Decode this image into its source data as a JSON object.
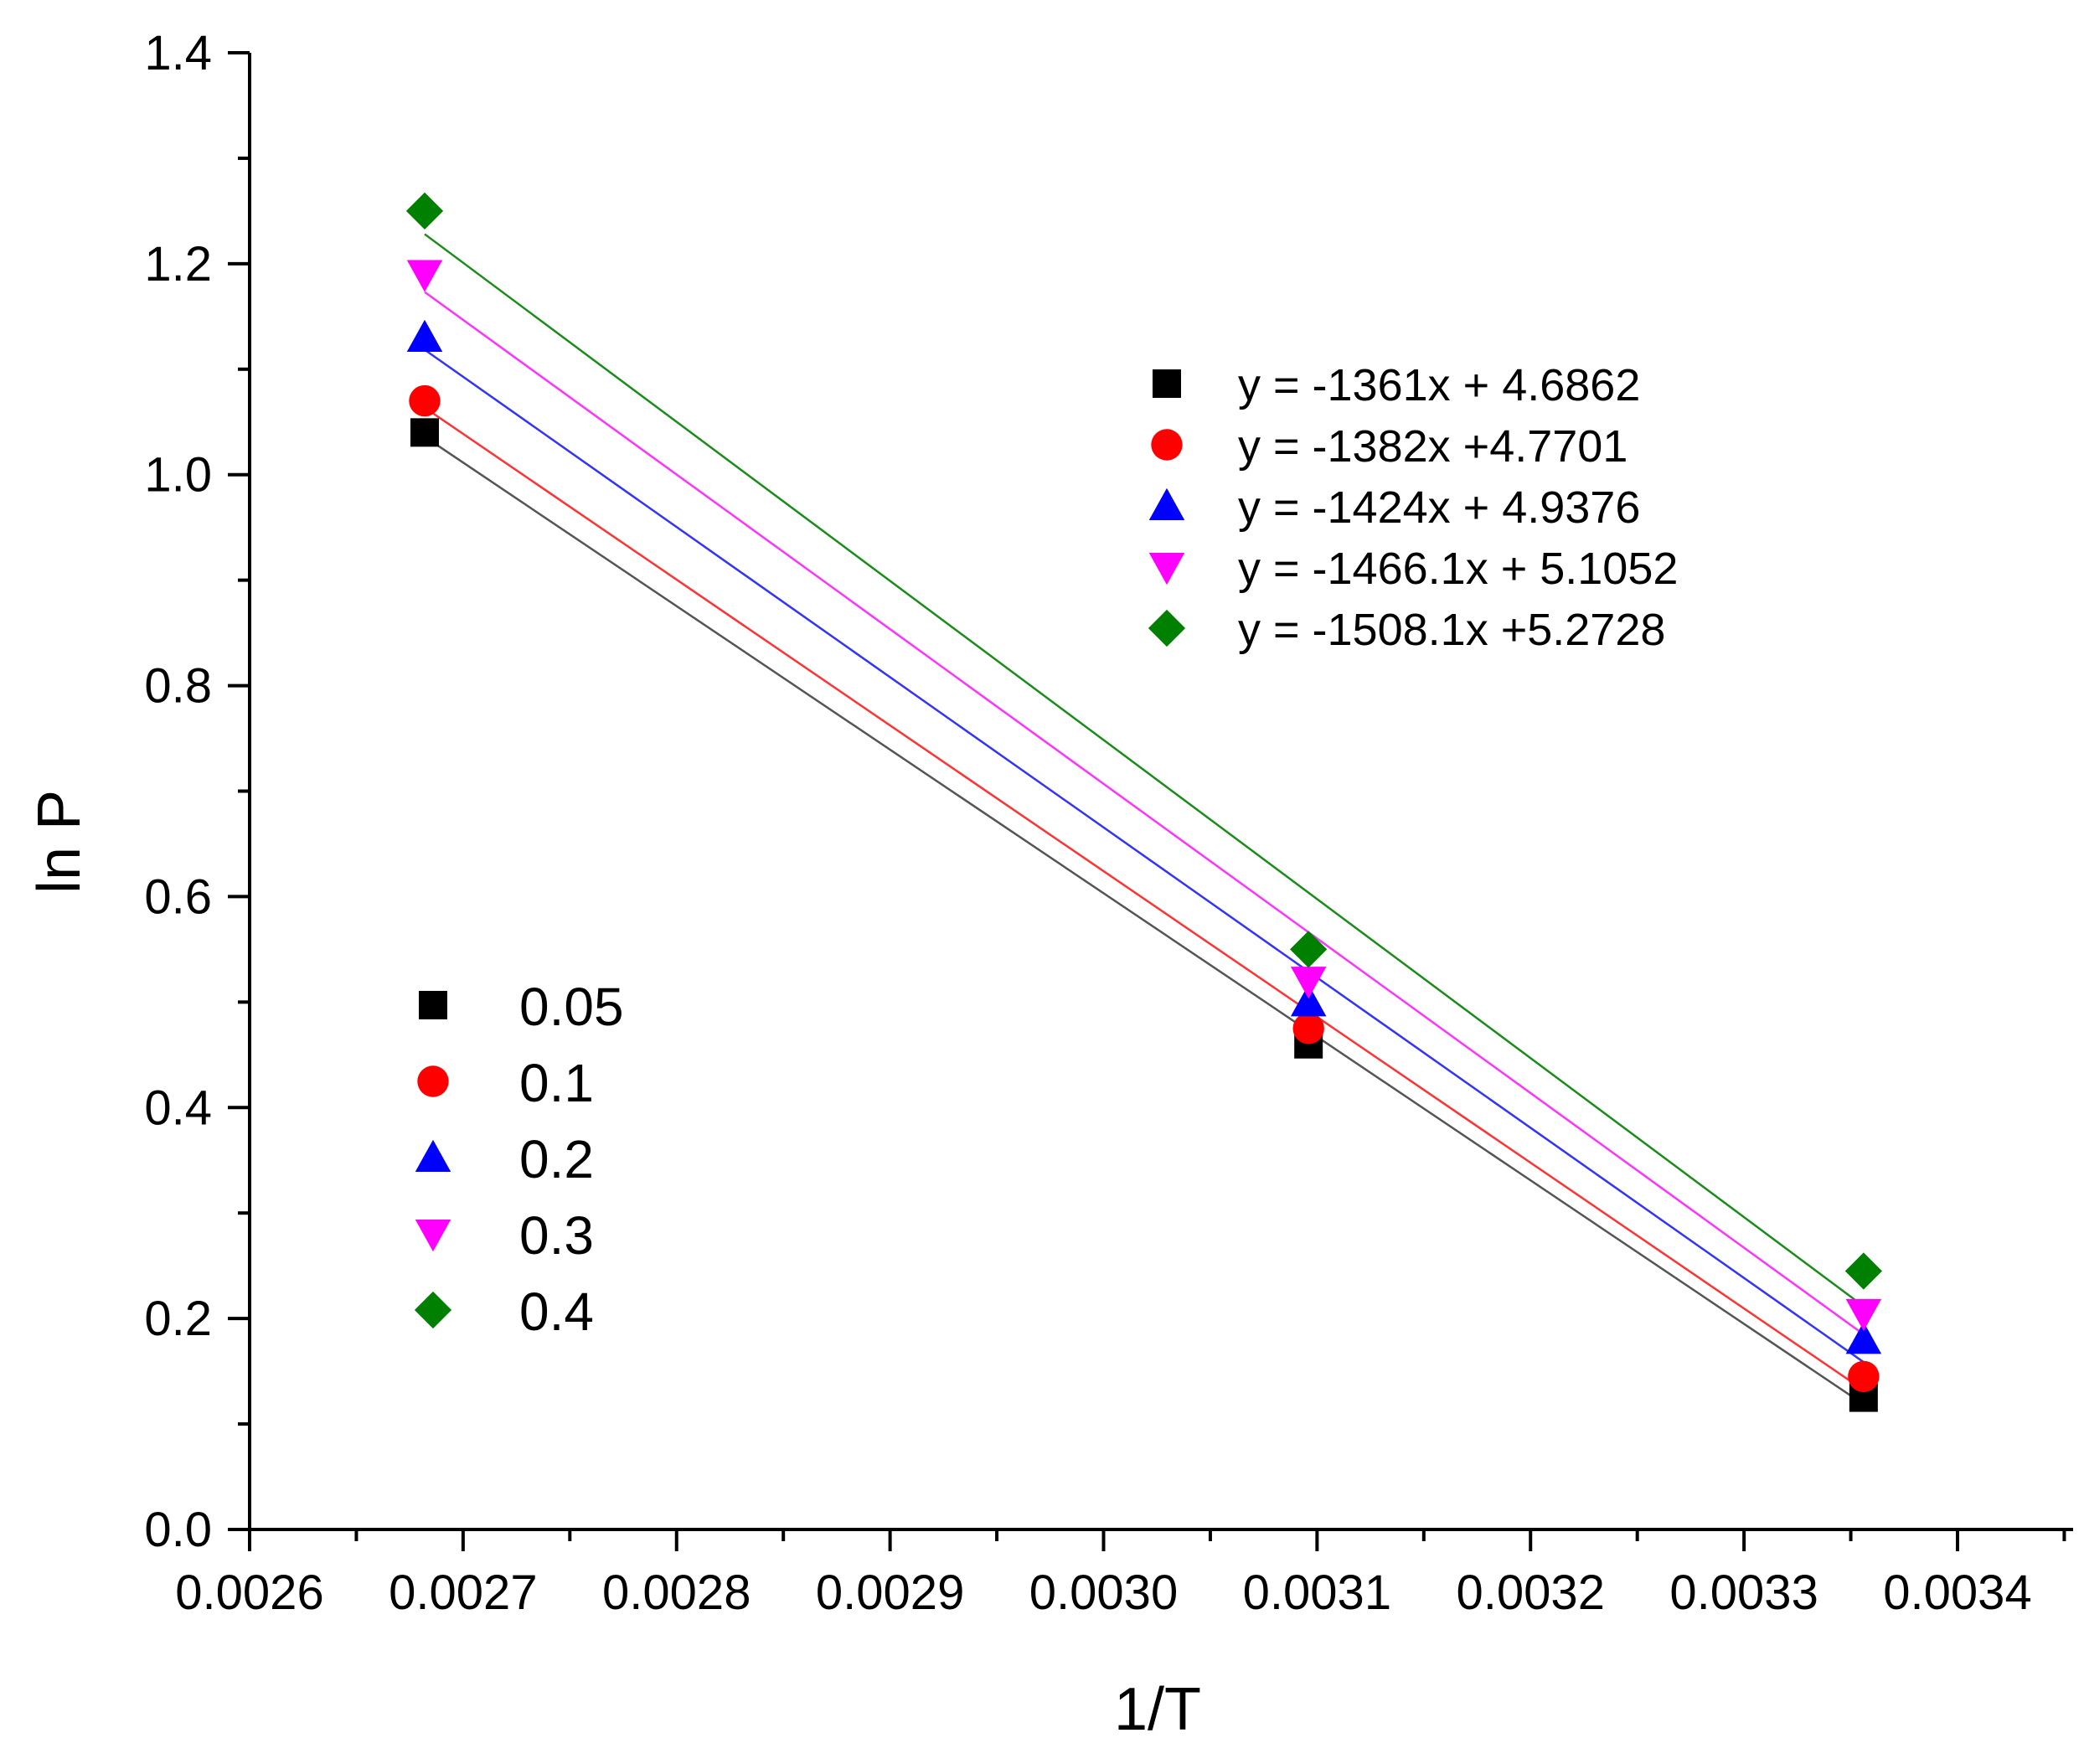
{
  "chart_data": {
    "type": "scatter",
    "title": "",
    "xlabel": "1/T",
    "ylabel": "ln P",
    "xlim": [
      0.0026,
      0.00345
    ],
    "ylim": [
      0.0,
      1.4
    ],
    "x": [
      0.002682,
      0.003096,
      0.003356
    ],
    "x_ticks": [
      0.0026,
      0.0027,
      0.0028,
      0.0029,
      0.003,
      0.0031,
      0.0032,
      0.0033,
      0.0034
    ],
    "x_tick_labels": [
      "0.0026",
      "0.0027",
      "0.0028",
      "0.0029",
      "0.0030",
      "0.0031",
      "0.0032",
      "0.0033",
      "0.0034"
    ],
    "y_ticks": [
      0.0,
      0.2,
      0.4,
      0.6,
      0.8,
      1.0,
      1.2,
      1.4
    ],
    "y_tick_labels": [
      "0.0",
      "0.2",
      "0.4",
      "0.6",
      "0.8",
      "1.0",
      "1.2",
      "1.4"
    ],
    "grid": false,
    "legend_position": "left-middle",
    "equations_position": "top-right",
    "series": [
      {
        "name": "0.05",
        "marker": "square",
        "color": "#000000",
        "line_color": "#555555",
        "values": [
          1.04,
          0.46,
          0.125
        ],
        "slope": -1361,
        "intercept": 4.6862,
        "equation": "y = -1361x + 4.6862"
      },
      {
        "name": "0.1",
        "marker": "circle",
        "color": "#ff0000",
        "line_color": "#ff3333",
        "values": [
          1.07,
          0.475,
          0.145
        ],
        "slope": -1382,
        "intercept": 4.7701,
        "equation": "y = -1382x +4.7701"
      },
      {
        "name": "0.2",
        "marker": "triangle-up",
        "color": "#0000ff",
        "line_color": "#3333ff",
        "values": [
          1.13,
          0.5,
          0.18
        ],
        "slope": -1424,
        "intercept": 4.9376,
        "equation": "y = -1424x + 4.9376"
      },
      {
        "name": "0.3",
        "marker": "triangle-down",
        "color": "#ff00ff",
        "line_color": "#ff33ff",
        "values": [
          1.19,
          0.52,
          0.205
        ],
        "slope": -1466.1,
        "intercept": 5.1052,
        "equation": "y = -1466.1x + 5.1052"
      },
      {
        "name": "0.4",
        "marker": "diamond",
        "color": "#008000",
        "line_color": "#1a8c1a",
        "values": [
          1.25,
          0.55,
          0.245
        ],
        "slope": -1508.1,
        "intercept": 5.2728,
        "equation": "y = -1508.1x +5.2728"
      }
    ]
  }
}
